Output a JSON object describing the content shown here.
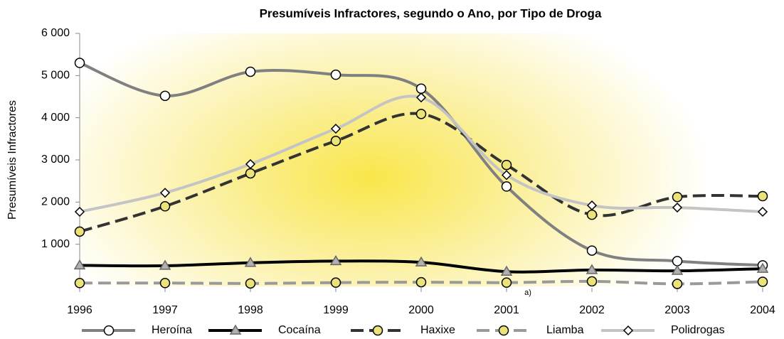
{
  "chart_data": {
    "type": "line",
    "title": "Presumíveis Infractores, segundo o Ano, por Tipo de Droga",
    "ylabel": "Presumíveis Infractores",
    "annotation": "a)",
    "x": [
      1996,
      1997,
      1998,
      1999,
      2000,
      2001,
      2002,
      2003,
      2004
    ],
    "xlim": [
      1996,
      2004
    ],
    "xticks": [
      1996,
      1997,
      1998,
      1999,
      2000,
      2001,
      2002,
      2003,
      2004
    ],
    "ylim": [
      0,
      6000
    ],
    "yticks": [
      {
        "value": 1000,
        "label": "1 000"
      },
      {
        "value": 2000,
        "label": "2 000"
      },
      {
        "value": 3000,
        "label": "3 000"
      },
      {
        "value": 4000,
        "label": "4 000"
      },
      {
        "value": 5000,
        "label": "5 000"
      },
      {
        "value": 6000,
        "label": "6 000"
      }
    ],
    "series": [
      {
        "name": "Heroína",
        "color": "#808080",
        "marker": "circle",
        "marker_color": "#ffffff",
        "dash": false,
        "values": [
          5300,
          4520,
          5090,
          5020,
          4690,
          2370,
          850,
          600,
          500
        ]
      },
      {
        "name": "Cocaína",
        "color": "#000000",
        "marker": "triangle",
        "marker_color": "#b0b0b0",
        "dash": false,
        "values": [
          500,
          490,
          560,
          600,
          570,
          350,
          390,
          370,
          420
        ]
      },
      {
        "name": "Haxixe",
        "color": "#333333",
        "marker": "circle",
        "marker_color": "#ece27a",
        "dash": true,
        "values": [
          1300,
          1900,
          2680,
          3450,
          4090,
          2880,
          1700,
          2120,
          2140
        ]
      },
      {
        "name": "Liamba",
        "color": "#9a9a9a",
        "marker": "circle",
        "marker_color": "#ece27a",
        "dash": true,
        "values": [
          80,
          80,
          70,
          90,
          100,
          90,
          120,
          60,
          110
        ]
      },
      {
        "name": "Polidrogas",
        "color": "#c4c4c4",
        "marker": "diamond",
        "marker_color": "#ffffff",
        "dash": false,
        "values": [
          1770,
          2220,
          2900,
          3740,
          4480,
          2640,
          1920,
          1870,
          1770
        ]
      }
    ]
  }
}
